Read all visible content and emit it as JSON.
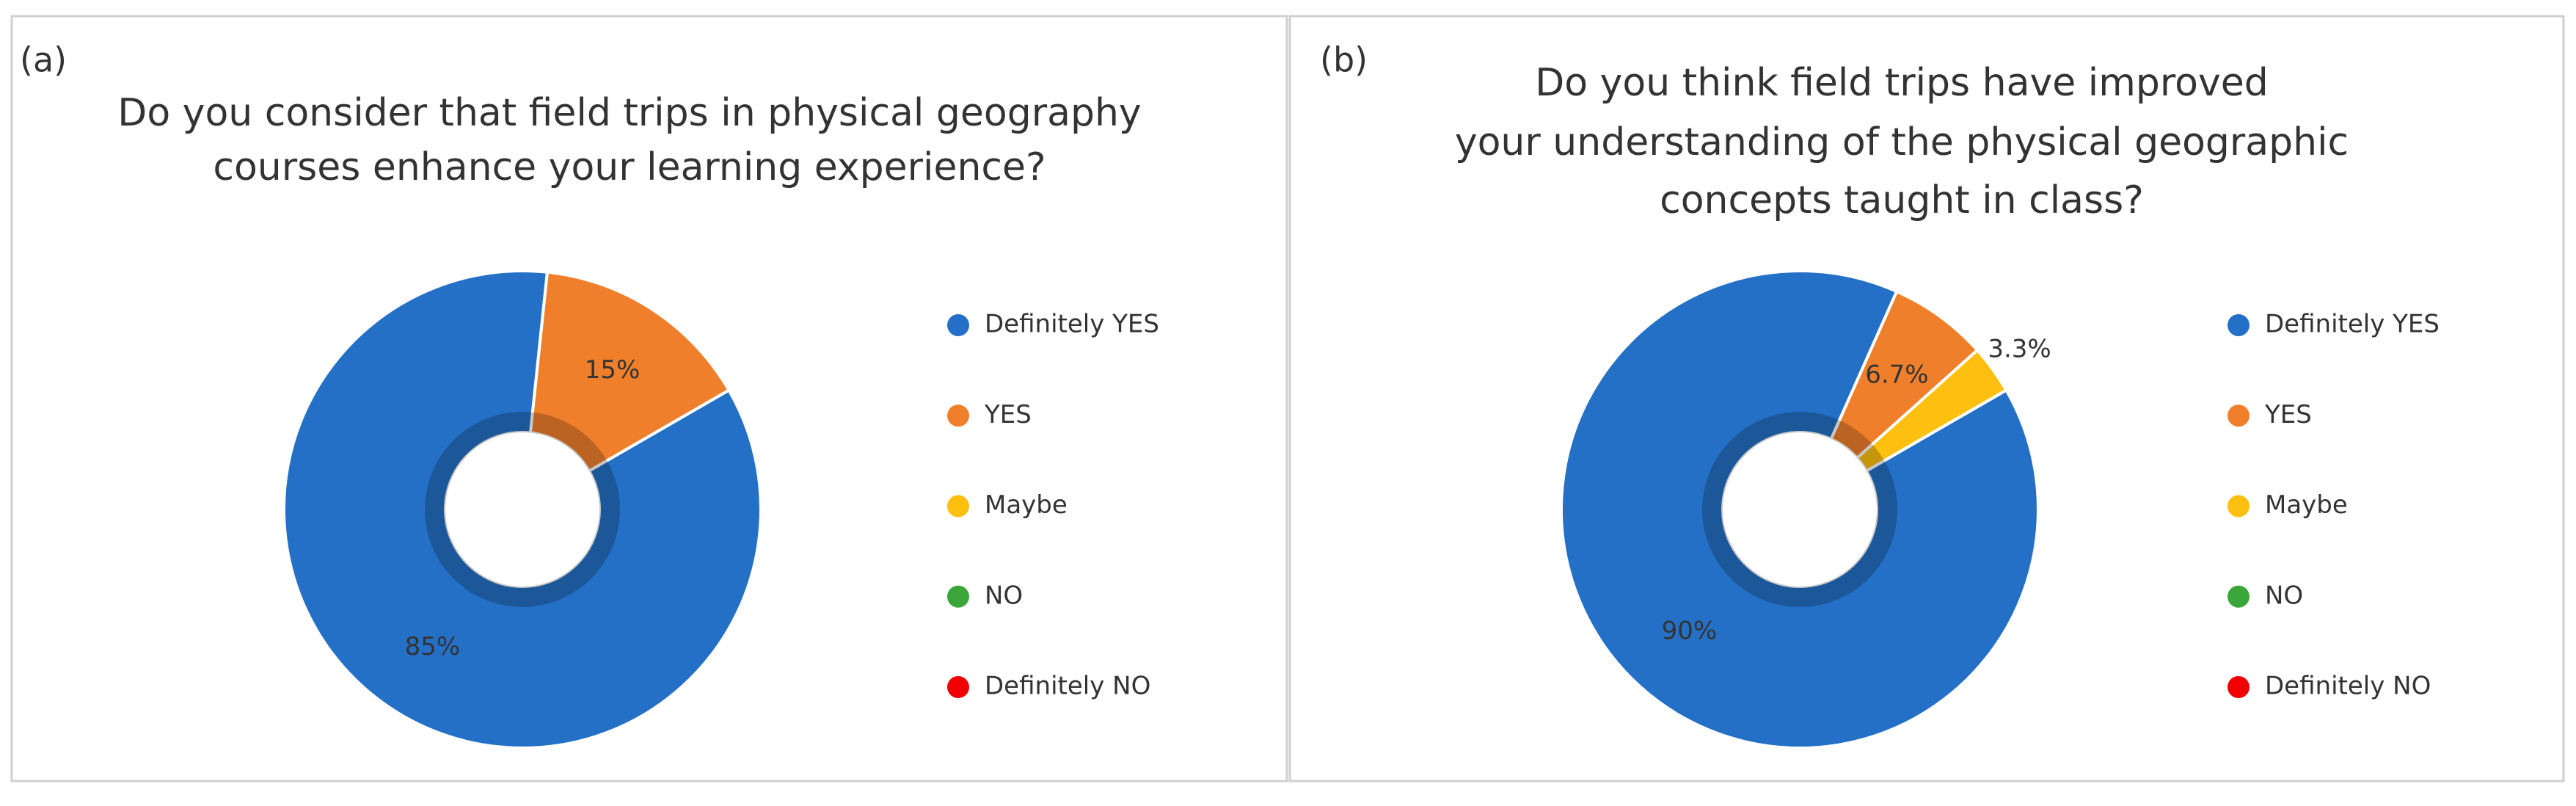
{
  "chart_data": [
    {
      "type": "donut",
      "panel": "(a)",
      "title": [
        "Do you consider that field trips in physical geography",
        "courses enhance your learning experience?"
      ],
      "categories": [
        "Definitely YES",
        "YES",
        "Maybe",
        "NO",
        "Definitely NO"
      ],
      "values": [
        85,
        15,
        0,
        0,
        0
      ],
      "value_labels": [
        "85%",
        "15%",
        null,
        null,
        null
      ],
      "colors": [
        "#2470c6",
        "#f07f2c",
        "#fdc010",
        "#3aa63a",
        "#f00000"
      ]
    },
    {
      "type": "donut",
      "panel": "(b)",
      "title": [
        "Do you think field trips have improved",
        "your understanding of the physical geographic",
        "concepts taught in class?"
      ],
      "categories": [
        "Definitely YES",
        "YES",
        "Maybe",
        "NO",
        "Definitely NO"
      ],
      "values": [
        90,
        6.7,
        3.3,
        0,
        0
      ],
      "value_labels": [
        "90%",
        "6.7%",
        "3.3%",
        null,
        null
      ],
      "colors": [
        "#2470c6",
        "#f07f2c",
        "#fdc010",
        "#3aa63a",
        "#f00000"
      ]
    }
  ]
}
